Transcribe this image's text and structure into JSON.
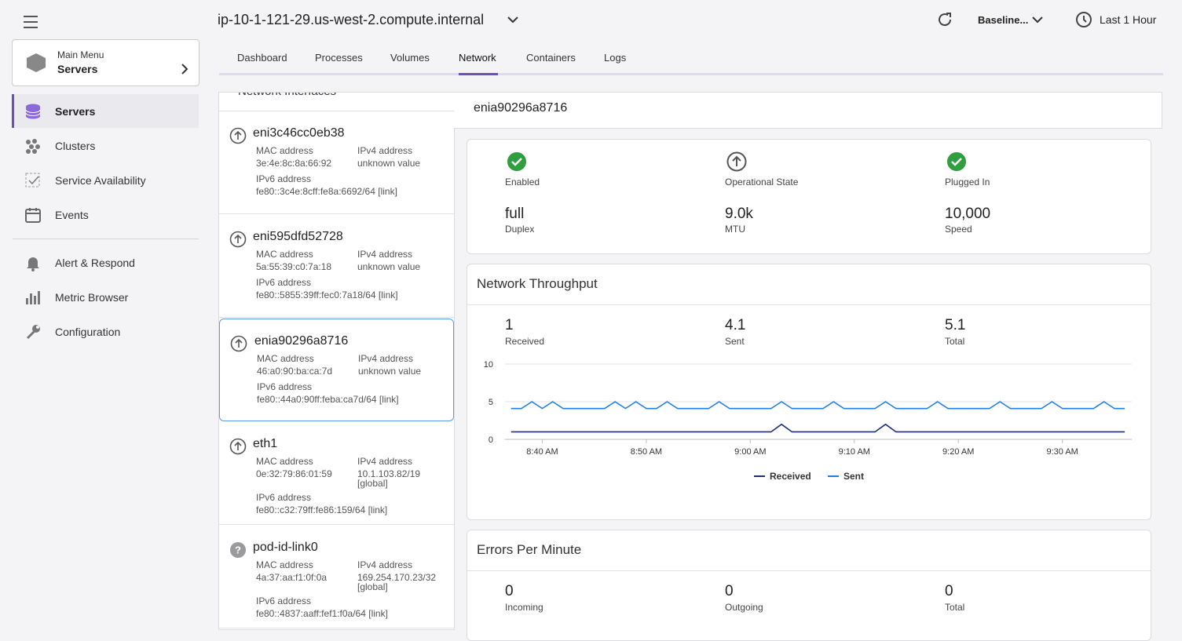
{
  "header": {
    "host": "ip-10-1-121-29.us-west-2.compute.internal",
    "baseline": "Baseline...",
    "time_range": "Last 1 Hour"
  },
  "tabs": [
    "Dashboard",
    "Processes",
    "Volumes",
    "Network",
    "Containers",
    "Logs"
  ],
  "sidebar": {
    "main_menu_label": "Main Menu",
    "main_menu_value": "Servers",
    "items": [
      "Servers",
      "Clusters",
      "Service Availability",
      "Events"
    ],
    "items2": [
      "Alert & Respond",
      "Metric Browser",
      "Configuration"
    ]
  },
  "interfaces": {
    "title": "Network Interfaces",
    "items": [
      {
        "name": "eni3c46cc0eb38",
        "mac_label": "MAC address",
        "mac": "3e:4e:8c:8a:66:92",
        "ipv4_label": "IPv4 address",
        "ipv4": "unknown value",
        "ipv6_label": "IPv6 address",
        "ipv6": "fe80::3c4e:8cff:fe8a:6692/64 [link]"
      },
      {
        "name": "eni595dfd52728",
        "mac_label": "MAC address",
        "mac": "5a:55:39:c0:7a:18",
        "ipv4_label": "IPv4 address",
        "ipv4": "unknown value",
        "ipv6_label": "IPv6 address",
        "ipv6": "fe80::5855:39ff:fec0:7a18/64 [link]"
      },
      {
        "name": "enia90296a8716",
        "mac_label": "MAC address",
        "mac": "46:a0:90:ba:ca:7d",
        "ipv4_label": "IPv4 address",
        "ipv4": "unknown value",
        "ipv6_label": "IPv6 address",
        "ipv6": "fe80::44a0:90ff:feba:ca7d/64 [link]"
      },
      {
        "name": "eth1",
        "mac_label": "MAC address",
        "mac": "0e:32:79:86:01:59",
        "ipv4_label": "IPv4 address",
        "ipv4": "10.1.103.82/19 [global]",
        "ipv6_label": "IPv6 address",
        "ipv6": "fe80::c32:79ff:fe86:159/64 [link]"
      },
      {
        "name": "pod-id-link0",
        "mac_label": "MAC address",
        "mac": "4a:37:aa:f1:0f:0a",
        "ipv4_label": "IPv4 address",
        "ipv4": "169.254.170.23/32 [global]",
        "ipv6_label": "IPv6 address",
        "ipv6": "fe80::4837:aaff:fef1:f0a/64 [link]"
      }
    ]
  },
  "detail": {
    "title": "enia90296a8716",
    "status": [
      {
        "label": "Enabled"
      },
      {
        "label": "Operational State"
      },
      {
        "label": "Plugged In"
      }
    ],
    "props": [
      {
        "value": "full",
        "label": "Duplex"
      },
      {
        "value": "9.0k",
        "label": "MTU"
      },
      {
        "value": "10,000",
        "label": "Speed"
      }
    ]
  },
  "throughput": {
    "title": "Network Throughput",
    "summary": [
      {
        "value": 1,
        "label": "Received"
      },
      {
        "value": 4.1,
        "label": "Sent"
      },
      {
        "value": 5.1,
        "label": "Total"
      }
    ]
  },
  "errors": {
    "title": "Errors Per Minute",
    "summary": [
      {
        "value": 0,
        "label": "Incoming"
      },
      {
        "value": 0,
        "label": "Outgoing"
      },
      {
        "value": 0,
        "label": "Total"
      }
    ]
  },
  "chart_data": {
    "type": "line",
    "x": [
      517,
      518,
      519,
      520,
      521,
      522,
      523,
      524,
      525,
      526,
      527,
      528,
      529,
      530,
      531,
      532,
      533,
      534,
      535,
      536,
      537,
      538,
      539,
      540,
      541,
      542,
      543,
      544,
      545,
      546,
      547,
      548,
      549,
      550,
      551,
      552,
      553,
      554,
      555,
      556,
      557,
      558,
      559,
      560,
      561,
      562,
      563,
      564,
      565,
      566,
      567,
      568,
      569,
      570,
      571,
      572,
      573,
      574,
      575,
      576
    ],
    "xlim": [
      514,
      577.5
    ],
    "xticks": [
      {
        "value": 520,
        "label": "8:40 AM"
      },
      {
        "value": 530,
        "label": "8:50 AM"
      },
      {
        "value": 540,
        "label": "9:00 AM"
      },
      {
        "value": 550,
        "label": "9:10 AM"
      },
      {
        "value": 560,
        "label": "9:20 AM"
      },
      {
        "value": 570,
        "label": "9:30 AM"
      }
    ],
    "ylim": [
      0,
      10
    ],
    "yticks": [
      0,
      5,
      10
    ],
    "grid": true,
    "series": [
      {
        "name": "Received",
        "color": "#1b2f7a",
        "values": [
          1,
          1,
          1,
          1,
          1,
          1,
          1,
          1,
          1,
          1,
          1,
          1,
          1,
          1,
          1,
          1,
          1,
          1,
          1,
          1,
          1,
          1,
          1,
          1,
          1,
          1,
          2,
          1,
          1,
          1,
          1,
          1,
          1,
          1,
          1,
          1,
          2,
          1,
          1,
          1,
          1,
          1,
          1,
          1,
          1,
          1,
          1,
          1,
          1,
          1,
          1,
          1,
          1,
          1,
          1,
          1,
          1,
          1,
          1,
          1
        ]
      },
      {
        "name": "Sent",
        "color": "#1f7fe0",
        "values": [
          4.1,
          4.1,
          5,
          4.1,
          5,
          4.1,
          4.1,
          4.1,
          4.1,
          4.1,
          5,
          4.1,
          5,
          4.1,
          4.1,
          5,
          4.1,
          4.1,
          4.1,
          4.1,
          5,
          4.1,
          4.1,
          4.1,
          4.1,
          4.1,
          5,
          4.1,
          4.1,
          4.1,
          4.1,
          5,
          4.1,
          4.1,
          4.1,
          4.1,
          5,
          4.1,
          4.1,
          4.1,
          4.1,
          5,
          4.1,
          4.1,
          4.1,
          4.1,
          4.1,
          5,
          4.1,
          4.1,
          4.1,
          4.1,
          5,
          4.1,
          4.1,
          4.1,
          4.1,
          5,
          4.1,
          4.1
        ]
      }
    ]
  }
}
